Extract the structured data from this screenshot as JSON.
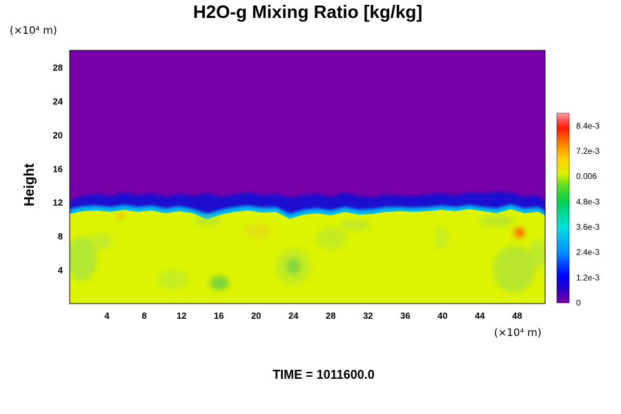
{
  "chart_data": {
    "type": "heatmap",
    "title": "H2O-g Mixing Ratio [kg/kg]",
    "ylabel": "Height",
    "x_unit": "(×10⁴ m)",
    "y_unit": "(×10⁴ m)",
    "xlim": [
      0,
      51
    ],
    "ylim": [
      0,
      30
    ],
    "x_ticks": [
      "4",
      "8",
      "12",
      "16",
      "20",
      "24",
      "28",
      "32",
      "36",
      "40",
      "44",
      "48"
    ],
    "y_ticks": [
      "4",
      "8",
      "12",
      "16",
      "20",
      "24",
      "28"
    ],
    "x_tick_values": [
      4,
      8,
      12,
      16,
      20,
      24,
      28,
      32,
      36,
      40,
      44,
      48
    ],
    "y_tick_values": [
      4,
      8,
      12,
      16,
      20,
      24,
      28
    ],
    "colorbar": {
      "min": 0,
      "max": 0.009,
      "tick_labels": [
        "8.4e-3",
        "7.2e-3",
        "0.006",
        "4.8e-3",
        "3.6e-3",
        "2.4e-3",
        "1.2e-3",
        "0"
      ],
      "tick_values": [
        0.0084,
        0.0072,
        0.006,
        0.0048,
        0.0036,
        0.0024,
        0.0012,
        0
      ]
    },
    "fields": {
      "upper_layer_value": 0,
      "lower_layer_value": 0.0063,
      "interface_height_min": 10.5,
      "interface_height_max": 13
    },
    "grid": false,
    "legend": "right"
  },
  "footer": {
    "time_label": "TIME = 1011600.0"
  }
}
